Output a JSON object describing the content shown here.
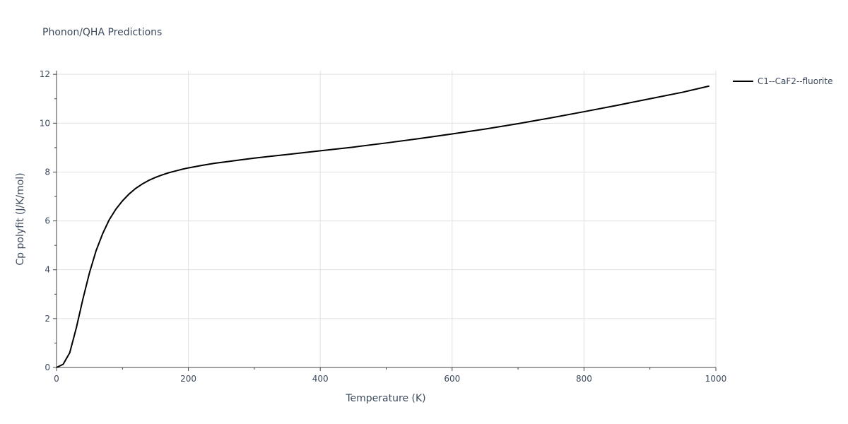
{
  "chart_data": {
    "type": "line",
    "title": "Phonon/QHA Predictions",
    "xlabel": "Temperature (K)",
    "ylabel": "Cp polyfit (J/K/mol)",
    "xlim": [
      0,
      1000
    ],
    "ylim": [
      0,
      12.15
    ],
    "x_ticks": [
      0,
      200,
      400,
      600,
      800,
      1000
    ],
    "y_ticks": [
      0,
      2,
      4,
      6,
      8,
      10,
      12
    ],
    "grid": true,
    "legend_position": "top-right",
    "series": [
      {
        "name": "C1--CaF2--fluorite",
        "color": "#000000",
        "x": [
          0,
          10,
          20,
          30,
          40,
          50,
          60,
          70,
          80,
          90,
          100,
          110,
          120,
          130,
          140,
          150,
          160,
          170,
          180,
          190,
          200,
          220,
          240,
          260,
          280,
          300,
          350,
          400,
          450,
          500,
          550,
          600,
          650,
          700,
          750,
          800,
          850,
          900,
          950,
          990
        ],
        "y": [
          0,
          0.13,
          0.6,
          1.62,
          2.8,
          3.88,
          4.78,
          5.48,
          6.05,
          6.48,
          6.82,
          7.1,
          7.33,
          7.51,
          7.66,
          7.78,
          7.88,
          7.97,
          8.04,
          8.11,
          8.17,
          8.27,
          8.36,
          8.43,
          8.5,
          8.57,
          8.72,
          8.87,
          9.02,
          9.19,
          9.37,
          9.56,
          9.76,
          9.98,
          10.22,
          10.47,
          10.73,
          11.0,
          11.27,
          11.52
        ]
      }
    ]
  }
}
